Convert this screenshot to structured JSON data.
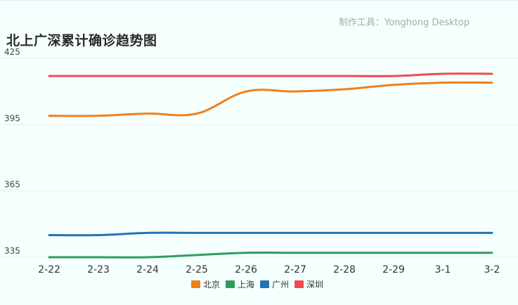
{
  "header": {
    "credit": "制作工具：Yonghong Desktop",
    "title": "北上广深累计确诊趋势图"
  },
  "chart_data": {
    "type": "line",
    "title": "北上广深累计确诊趋势图",
    "x": [
      "2-22",
      "2-23",
      "2-24",
      "2-25",
      "2-26",
      "2-27",
      "2-28",
      "2-29",
      "3-1",
      "3-2"
    ],
    "ylim": [
      335,
      425
    ],
    "yticks": [
      335,
      365,
      395,
      425
    ],
    "grid": true,
    "legend_position": "bottom",
    "series": [
      {
        "name": "北京",
        "color": "#f07f1a",
        "values": [
          399,
          399,
          400,
          400,
          410,
          410,
          411,
          413,
          414,
          414
        ]
      },
      {
        "name": "上海",
        "color": "#2e9e5e",
        "values": [
          335,
          335,
          335,
          336,
          337,
          337,
          337,
          337,
          337,
          337
        ]
      },
      {
        "name": "广州",
        "color": "#2273b4",
        "values": [
          345,
          345,
          346,
          346,
          346,
          346,
          346,
          346,
          346,
          346
        ]
      },
      {
        "name": "深圳",
        "color": "#ef4b50",
        "values": [
          417,
          417,
          417,
          417,
          417,
          417,
          417,
          417,
          418,
          418
        ]
      }
    ]
  }
}
